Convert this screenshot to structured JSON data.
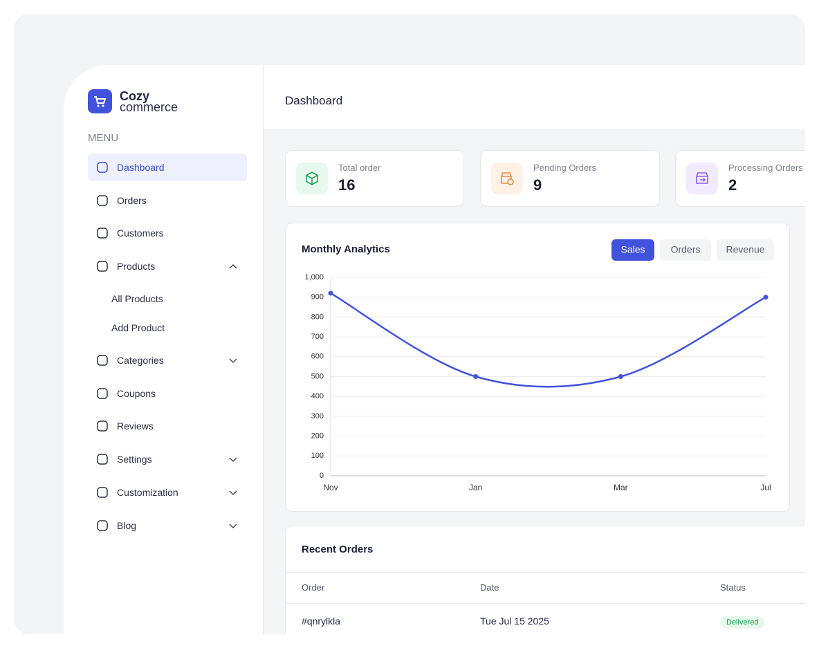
{
  "brand": {
    "name_top": "Cozy",
    "name_bottom": "commerce"
  },
  "sidebar": {
    "menu_label": "MENU",
    "items": [
      "Dashboard",
      "Orders",
      "Customers",
      "Products",
      "All Products",
      "Add Product",
      "Categories",
      "Coupons",
      "Reviews",
      "Settings",
      "Customization",
      "Blog"
    ]
  },
  "header": {
    "title": "Dashboard"
  },
  "stats": [
    {
      "label": "Total order",
      "value": 16
    },
    {
      "label": "Pending Orders",
      "value": 9
    },
    {
      "label": "Processing Orders",
      "value": 2
    }
  ],
  "chart_data": {
    "type": "line",
    "title": "Monthly Analytics",
    "tabs": [
      "Sales",
      "Orders",
      "Revenue"
    ],
    "categories": [
      "Nov",
      "Jan",
      "Mar",
      "Jul"
    ],
    "values": [
      920,
      500,
      500,
      900
    ],
    "color": "#4152dc",
    "ylim": [
      0,
      1000
    ],
    "yticks": [
      0,
      100,
      200,
      300,
      400,
      500,
      600,
      700,
      800,
      900,
      {
        "value": 1000,
        "label": "1,000"
      }
    ],
    "grid": true
  },
  "orders": {
    "title": "Recent Orders",
    "columns": [
      "Order",
      "Date",
      "Status"
    ],
    "rows": [
      [
        "#qnrylkla",
        "Tue Jul 15 2025",
        "Delivered"
      ]
    ]
  }
}
